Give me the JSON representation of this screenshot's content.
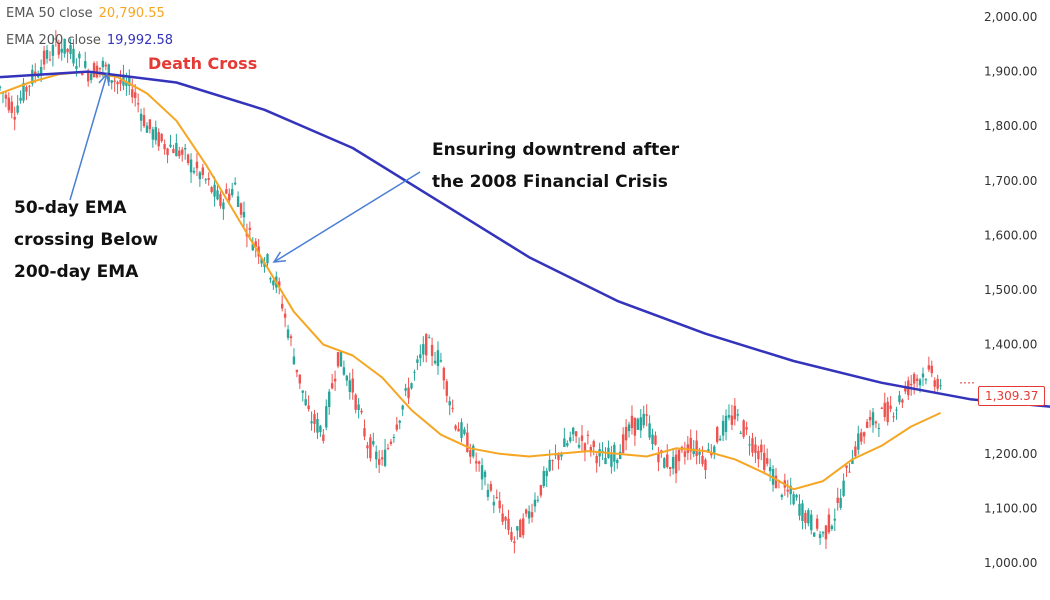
{
  "legend": {
    "ema50": {
      "label": "EMA 50 close",
      "value": "20,790.55",
      "color": "#f5a623"
    },
    "ema200": {
      "label": "EMA 200 close",
      "value": "19,992.58",
      "color": "#3333bb"
    }
  },
  "annotations": {
    "death_cross": "Death Cross",
    "crossing": [
      "50-day EMA",
      "crossing Below",
      "200-day EMA"
    ],
    "downtrend": [
      "Ensuring downtrend after",
      "the 2008 Financial Crisis"
    ]
  },
  "last_price": {
    "label": "1,309.37",
    "value": 1309.37,
    "color": "#e53935"
  },
  "colors": {
    "up": "#26a69a",
    "down": "#ef5350",
    "arrow": "#4a7fd4",
    "death_cross": "#e53935"
  },
  "chart_data": {
    "type": "line",
    "ylim": [
      1000,
      2000
    ],
    "y_ticks": [
      "1,000.00",
      "1,100.00",
      "1,200.00",
      "1,300.00",
      "1,400.00",
      "1,500.00",
      "1,600.00",
      "1,700.00",
      "1,800.00",
      "1,900.00",
      "2,000.00"
    ],
    "y_tick_values": [
      1000,
      1100,
      1200,
      1300,
      1400,
      1500,
      1600,
      1700,
      1800,
      1900,
      2000
    ],
    "n_bars": 240,
    "series": [
      {
        "name": "EMA 50 close",
        "color": "#f5a623",
        "points": [
          [
            0,
            1860
          ],
          [
            10,
            1880
          ],
          [
            20,
            1895
          ],
          [
            30,
            1900
          ],
          [
            40,
            1890
          ],
          [
            50,
            1860
          ],
          [
            60,
            1810
          ],
          [
            70,
            1730
          ],
          [
            80,
            1640
          ],
          [
            90,
            1550
          ],
          [
            100,
            1460
          ],
          [
            110,
            1400
          ],
          [
            120,
            1380
          ],
          [
            130,
            1340
          ],
          [
            140,
            1280
          ],
          [
            150,
            1235
          ],
          [
            160,
            1210
          ],
          [
            170,
            1200
          ],
          [
            180,
            1195
          ],
          [
            190,
            1200
          ],
          [
            200,
            1205
          ],
          [
            210,
            1200
          ],
          [
            220,
            1195
          ],
          [
            230,
            1210
          ],
          [
            240,
            1205
          ],
          [
            250,
            1190
          ],
          [
            260,
            1165
          ],
          [
            270,
            1135
          ],
          [
            280,
            1150
          ],
          [
            290,
            1190
          ],
          [
            300,
            1215
          ],
          [
            310,
            1250
          ],
          [
            320,
            1275
          ]
        ]
      },
      {
        "name": "EMA 200 close",
        "color": "#3333bb",
        "points": [
          [
            0,
            1890
          ],
          [
            30,
            1900
          ],
          [
            60,
            1880
          ],
          [
            90,
            1830
          ],
          [
            120,
            1760
          ],
          [
            150,
            1660
          ],
          [
            180,
            1560
          ],
          [
            210,
            1480
          ],
          [
            240,
            1420
          ],
          [
            270,
            1370
          ],
          [
            300,
            1330
          ],
          [
            330,
            1300
          ],
          [
            360,
            1285
          ],
          [
            390,
            1275
          ],
          [
            420,
            1262
          ],
          [
            450,
            1255
          ],
          [
            480,
            1250
          ],
          [
            520,
            1255
          ],
          [
            560,
            1265
          ]
        ]
      }
    ],
    "price_path": [
      [
        0,
        1870
      ],
      [
        5,
        1830
      ],
      [
        10,
        1880
      ],
      [
        15,
        1920
      ],
      [
        20,
        1950
      ],
      [
        25,
        1930
      ],
      [
        30,
        1900
      ],
      [
        35,
        1910
      ],
      [
        40,
        1880
      ],
      [
        45,
        1870
      ],
      [
        50,
        1800
      ],
      [
        55,
        1770
      ],
      [
        60,
        1760
      ],
      [
        65,
        1730
      ],
      [
        70,
        1700
      ],
      [
        75,
        1660
      ],
      [
        80,
        1690
      ],
      [
        85,
        1600
      ],
      [
        90,
        1560
      ],
      [
        95,
        1500
      ],
      [
        100,
        1380
      ],
      [
        105,
        1270
      ],
      [
        110,
        1240
      ],
      [
        115,
        1380
      ],
      [
        120,
        1320
      ],
      [
        125,
        1220
      ],
      [
        130,
        1180
      ],
      [
        135,
        1260
      ],
      [
        140,
        1330
      ],
      [
        145,
        1400
      ],
      [
        150,
        1370
      ],
      [
        155,
        1260
      ],
      [
        160,
        1210
      ],
      [
        165,
        1150
      ],
      [
        170,
        1100
      ],
      [
        175,
        1040
      ],
      [
        180,
        1090
      ],
      [
        185,
        1150
      ],
      [
        190,
        1200
      ],
      [
        195,
        1230
      ],
      [
        200,
        1220
      ],
      [
        205,
        1190
      ],
      [
        210,
        1200
      ],
      [
        215,
        1250
      ],
      [
        220,
        1260
      ],
      [
        225,
        1190
      ],
      [
        230,
        1180
      ],
      [
        235,
        1220
      ],
      [
        240,
        1190
      ],
      [
        245,
        1240
      ],
      [
        250,
        1270
      ],
      [
        255,
        1230
      ],
      [
        260,
        1190
      ],
      [
        265,
        1140
      ],
      [
        270,
        1120
      ],
      [
        275,
        1080
      ],
      [
        280,
        1050
      ],
      [
        285,
        1100
      ],
      [
        290,
        1200
      ],
      [
        295,
        1250
      ],
      [
        300,
        1270
      ],
      [
        305,
        1290
      ],
      [
        310,
        1330
      ],
      [
        315,
        1350
      ],
      [
        320,
        1330
      ]
    ],
    "title": "",
    "xlabel": "",
    "ylabel": ""
  }
}
